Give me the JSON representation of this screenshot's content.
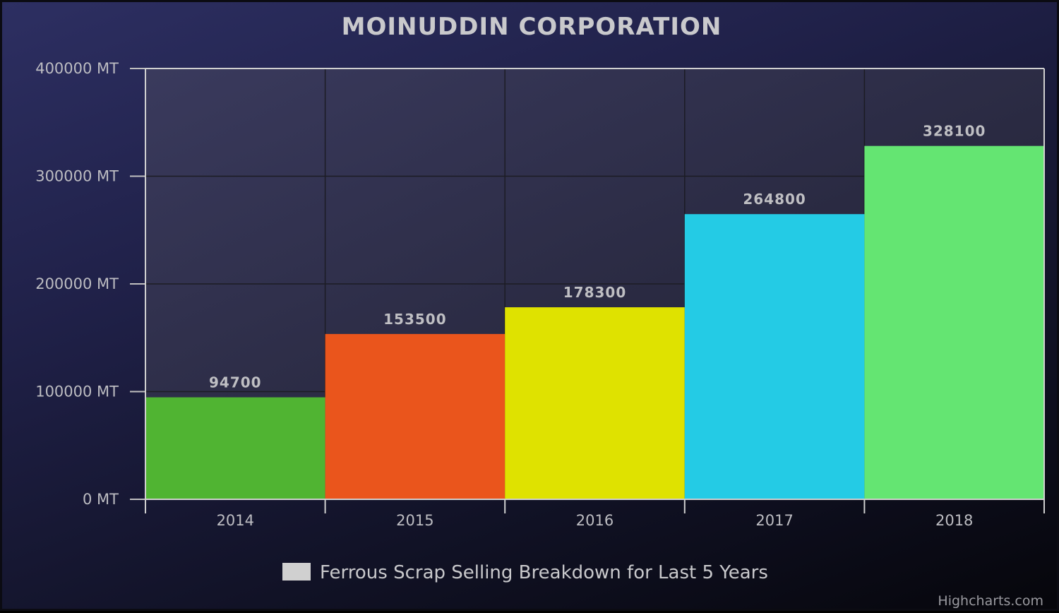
{
  "chart_data": {
    "type": "bar",
    "title": "MOINUDDIN CORPORATION",
    "categories": [
      "2014",
      "2015",
      "2016",
      "2017",
      "2018"
    ],
    "series": [
      {
        "name": "Ferrous Scrap Selling Breakdown for Last 5 Years",
        "values": [
          94700,
          153500,
          178300,
          264800,
          328100
        ],
        "data_labels": [
          "94700",
          "153500",
          "178300",
          "264800",
          "328100"
        ],
        "colors": [
          "#50b432",
          "#ea551c",
          "#dfe200",
          "#24cbe5",
          "#64e572"
        ]
      }
    ],
    "ylim": [
      0,
      400000
    ],
    "yticks": [
      0,
      100000,
      200000,
      300000,
      400000
    ],
    "ytick_labels": [
      "0 MT",
      "100000 MT",
      "200000 MT",
      "300000 MT",
      "400000 MT"
    ],
    "grid": true,
    "legend_position": "bottom-center",
    "legend_color": "#d0d0d0",
    "plot_background": "#3a3a58",
    "credits": "Highcharts.com"
  }
}
